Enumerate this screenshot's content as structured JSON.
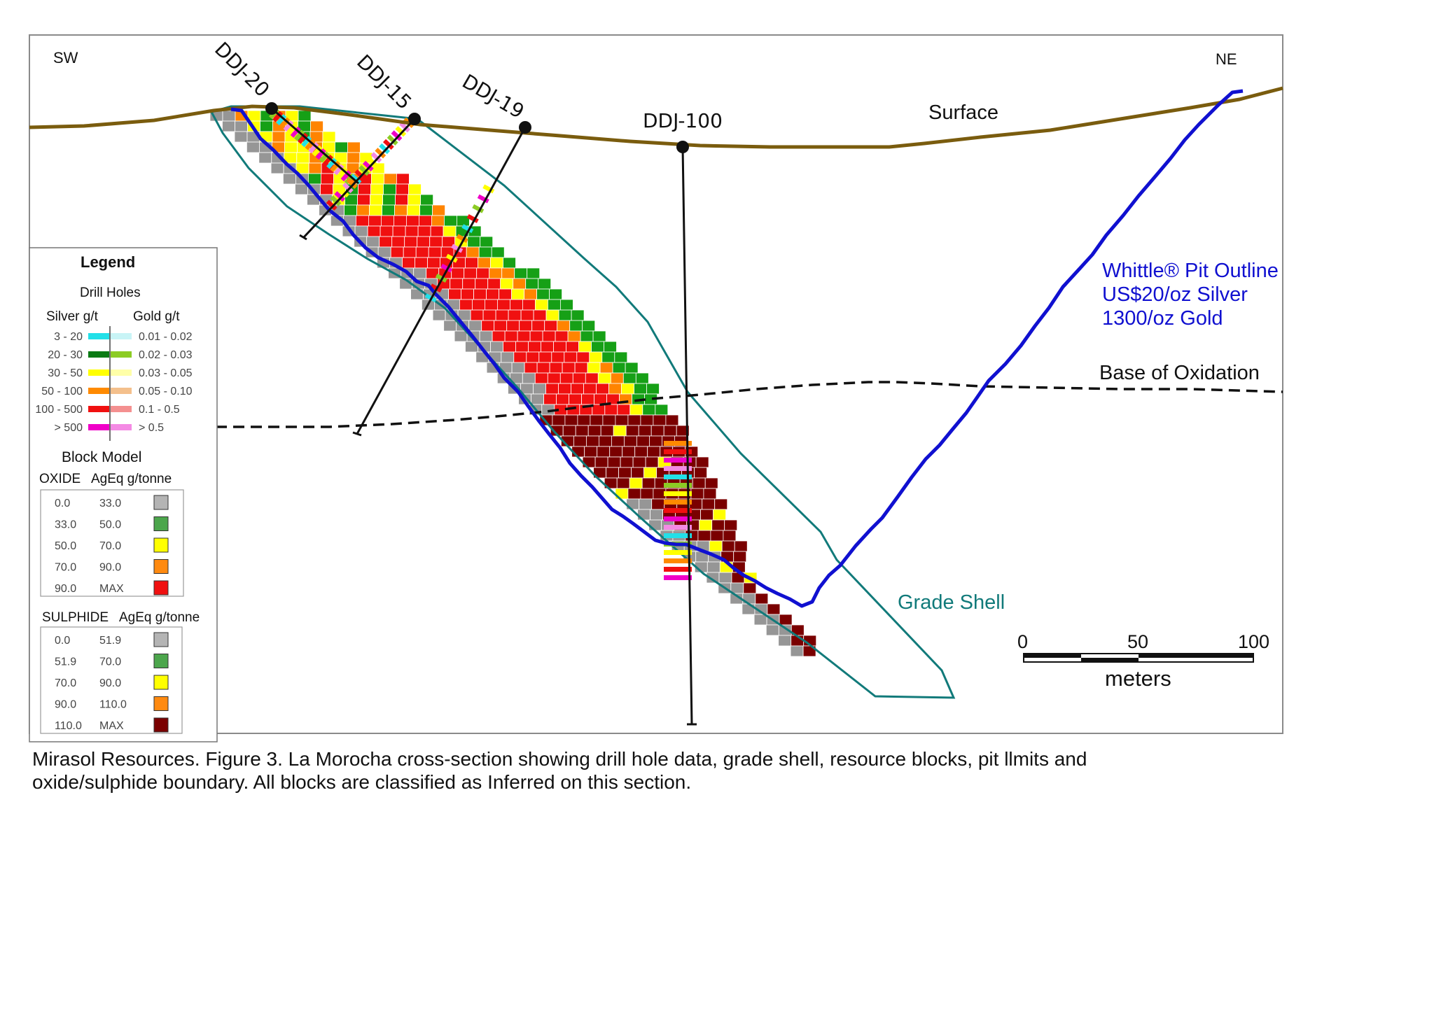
{
  "directions": {
    "sw": "SW",
    "ne": "NE"
  },
  "surface_label": "Surface",
  "drill_holes": [
    {
      "name": "DDJ-20"
    },
    {
      "name": "DDJ-15"
    },
    {
      "name": "DDJ-19"
    },
    {
      "name": "DDJ-100"
    }
  ],
  "pit": {
    "line1": "Whittle® Pit Outline",
    "line2": "US$20/oz Silver",
    "line3": "1300/oz Gold",
    "color": "#1010d0"
  },
  "oxidation_label": "Base of Oxidation",
  "grade_shell_label": "Grade Shell",
  "colors": {
    "surface": "#7a5c0e",
    "grade_shell": "#117a7a",
    "pit": "#1010d0"
  },
  "scale": {
    "ticks": [
      "0",
      "50",
      "100"
    ],
    "unit": "meters"
  },
  "legend": {
    "title": "Legend",
    "drill_holes_title": "Drill Holes",
    "silver_header": "Silver g/t",
    "gold_header": "Gold g/t",
    "rows": [
      {
        "silver": "3 - 20",
        "gold": "0.01 - 0.02",
        "silver_color": "#22e0e8",
        "gold_color": "#c8f4f6"
      },
      {
        "silver": "20 - 30",
        "gold": "0.02 - 0.03",
        "silver_color": "#0a7a14",
        "gold_color": "#8ccc24"
      },
      {
        "silver": "30 - 50",
        "gold": "0.03 - 0.05",
        "silver_color": "#ffff00",
        "gold_color": "#ffffa8"
      },
      {
        "silver": "50 - 100",
        "gold": "0.05 - 0.10",
        "silver_color": "#ff8a00",
        "gold_color": "#f4c08c"
      },
      {
        "silver": "100 - 500",
        "gold": "0.1 - 0.5",
        "silver_color": "#f01010",
        "gold_color": "#f49090"
      },
      {
        "silver": "> 500",
        "gold": "> 0.5",
        "silver_color": "#f000c8",
        "gold_color": "#f48ae4"
      }
    ],
    "block_model_title": "Block Model",
    "oxide": {
      "header1": "OXIDE",
      "header2": "AgEq g/tonne",
      "rows": [
        {
          "from": "0.0",
          "to": "33.0",
          "color": "#b4b4b4"
        },
        {
          "from": "33.0",
          "to": "50.0",
          "color": "#4ca64c"
        },
        {
          "from": "50.0",
          "to": "70.0",
          "color": "#ffff00"
        },
        {
          "from": "70.0",
          "to": "90.0",
          "color": "#ff8a10"
        },
        {
          "from": "90.0",
          "to": "MAX",
          "color": "#f01010"
        }
      ]
    },
    "sulphide": {
      "header1": "SULPHIDE",
      "header2": "AgEq g/tonne",
      "rows": [
        {
          "from": "0.0",
          "to": "51.9",
          "color": "#b4b4b4"
        },
        {
          "from": "51.9",
          "to": "70.0",
          "color": "#4ca64c"
        },
        {
          "from": "70.0",
          "to": "90.0",
          "color": "#ffff00"
        },
        {
          "from": "90.0",
          "to": "110.0",
          "color": "#ff8a10"
        },
        {
          "from": "110.0",
          "to": "MAX",
          "color": "#7a0000"
        }
      ]
    }
  },
  "caption": {
    "line1": "Mirasol Resources. Figure 3. La Morocha cross-section showing drill hole data, grade shell, resource blocks, pit llmits and",
    "line2": "oxide/sulphide boundary. All blocks are classified as Inferred on this section."
  }
}
